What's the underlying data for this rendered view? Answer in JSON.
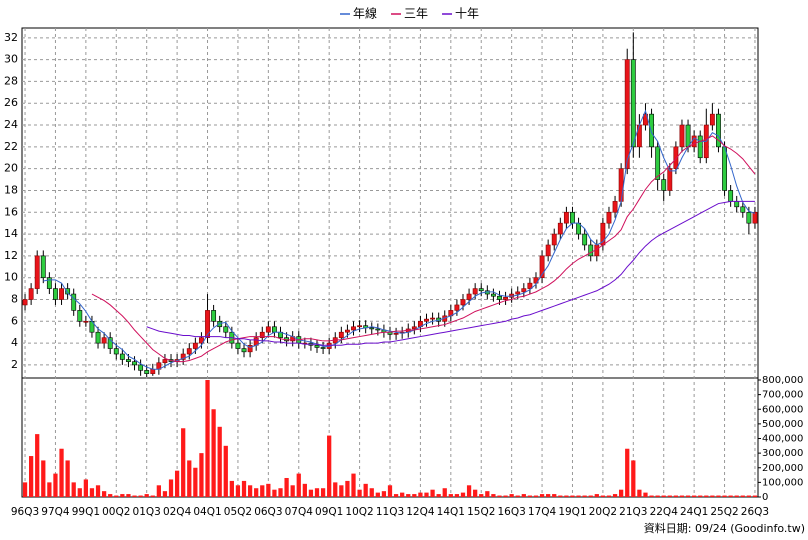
{
  "chart_data": {
    "type": "candlestick",
    "legend": "top",
    "grid": true,
    "categories": [
      "96Q3",
      null,
      null,
      null,
      null,
      "97Q4",
      null,
      null,
      null,
      null,
      "99Q1",
      null,
      null,
      null,
      null,
      "00Q2",
      null,
      null,
      null,
      null,
      "01Q3",
      null,
      null,
      null,
      null,
      "02Q4",
      null,
      null,
      null,
      null,
      "04Q1",
      null,
      null,
      null,
      null,
      "05Q2",
      null,
      null,
      null,
      null,
      "06Q3",
      null,
      null,
      null,
      null,
      "07Q4",
      null,
      null,
      null,
      null,
      "09Q1",
      null,
      null,
      null,
      null,
      "10Q2",
      null,
      null,
      null,
      null,
      "11Q3",
      null,
      null,
      null,
      null,
      "12Q4",
      null,
      null,
      null,
      null,
      "14Q1",
      null,
      null,
      null,
      null,
      "15Q2",
      null,
      null,
      null,
      null,
      "16Q3",
      null,
      null,
      null,
      null,
      "17Q4",
      null,
      null,
      null,
      null,
      "19Q1",
      null,
      null,
      null,
      null,
      "20Q2",
      null,
      null,
      null,
      null,
      "21Q3",
      null,
      null,
      null,
      null,
      "22Q4",
      null,
      null,
      null,
      null,
      "24Q1",
      null,
      null,
      null,
      null,
      "25Q2",
      null,
      null,
      null,
      null,
      "26Q3"
    ],
    "open": [
      7.5,
      8,
      9,
      12,
      10,
      9,
      8,
      9,
      8.5,
      7,
      6,
      6,
      5,
      4,
      4.5,
      3.5,
      3,
      2.5,
      2.3,
      2,
      1.5,
      1.2,
      1.6,
      2.2,
      2.5,
      2.3,
      2.5,
      3,
      3.5,
      4,
      4.5,
      7,
      6,
      5.5,
      5,
      4,
      3.5,
      3.2,
      3.8,
      4.5,
      5,
      5.5,
      5,
      4.5,
      4.2,
      4.6,
      4,
      4,
      3.8,
      3.6,
      3.5,
      4,
      4.5,
      5,
      5.2,
      5.5,
      5.6,
      5.4,
      5.3,
      5.2,
      5,
      4.8,
      4.9,
      5,
      5.3,
      5.5,
      6,
      6.2,
      6.3,
      6,
      6.5,
      7,
      7.5,
      8,
      8.5,
      9,
      8.8,
      8.5,
      8.3,
      8,
      8.2,
      8.5,
      8.7,
      9,
      9.5,
      10,
      12,
      13,
      14,
      15,
      16,
      15,
      14,
      13,
      12,
      13,
      15,
      16,
      17,
      20,
      30,
      22,
      24,
      25,
      22,
      19,
      18,
      20,
      22,
      24,
      22,
      23,
      21,
      24,
      25,
      22,
      18,
      17,
      16.5,
      16,
      15
    ],
    "high": [
      8.5,
      9.5,
      12.5,
      12.5,
      10.5,
      9.5,
      9.5,
      9.5,
      9,
      7.5,
      6.5,
      6.5,
      5.5,
      5,
      5,
      4,
      3.5,
      3,
      2.8,
      2.5,
      2,
      2.1,
      2.7,
      3,
      3,
      3,
      3.5,
      4,
      4.5,
      5,
      8.5,
      7.5,
      6.5,
      6,
      5.5,
      4.5,
      4,
      4.3,
      5,
      5.5,
      6,
      6,
      5.5,
      5,
      5.1,
      5.1,
      4.5,
      4.5,
      4.3,
      4.1,
      4.5,
      5,
      5.5,
      5.7,
      6,
      6.1,
      6.1,
      5.9,
      5.8,
      5.7,
      5.5,
      5.4,
      5.5,
      5.8,
      6,
      6.5,
      6.7,
      6.8,
      6.8,
      7,
      7.5,
      8,
      8.5,
      9,
      9.5,
      9.5,
      9.3,
      9,
      8.8,
      8.7,
      9,
      9.2,
      9.5,
      10,
      10.5,
      12.5,
      13.5,
      14.5,
      15.5,
      16.5,
      16.5,
      15.5,
      14.5,
      13.5,
      13.5,
      15.5,
      16.5,
      17.5,
      20.5,
      31,
      32.5,
      25,
      26,
      25.5,
      22.5,
      19.5,
      20.5,
      22.5,
      24.5,
      24.5,
      23.5,
      23.5,
      25.5,
      26,
      25.5,
      22.5,
      18.5,
      17.5,
      17,
      16.5,
      16.5
    ],
    "low": [
      7,
      7.5,
      8.5,
      9.5,
      8.5,
      7.5,
      7.5,
      8,
      6.5,
      5.5,
      5.5,
      4.5,
      3.5,
      3.5,
      3,
      2.5,
      2,
      1.8,
      1.5,
      1,
      0.9,
      1,
      1.1,
      1.7,
      1.8,
      1.8,
      2,
      2.5,
      3,
      3.5,
      4,
      5.5,
      5,
      4.5,
      3.5,
      3,
      2.7,
      2.7,
      3.3,
      4,
      4.5,
      4.5,
      4,
      3.7,
      3.7,
      3.5,
      3.5,
      3.3,
      3.1,
      3,
      3,
      3.5,
      4,
      4.5,
      4.7,
      5,
      4.9,
      4.8,
      4.7,
      4.5,
      4.3,
      4.3,
      4.4,
      4.5,
      4.8,
      5,
      5.5,
      5.7,
      5.5,
      5.5,
      6,
      6.5,
      7,
      7.5,
      8,
      8.3,
      8,
      7.8,
      7.5,
      7.5,
      7.7,
      8,
      8.2,
      8.5,
      9,
      9.5,
      11.5,
      12.5,
      13.5,
      14.5,
      14.5,
      13.5,
      12.5,
      11.5,
      11.5,
      12.5,
      14.5,
      15.5,
      16.5,
      19.5,
      21,
      21,
      23.5,
      21,
      18,
      17,
      17.5,
      19.5,
      21.5,
      21.5,
      21.5,
      20.5,
      20.5,
      23.5,
      21.5,
      17.5,
      16.5,
      16,
      15.5,
      14,
      14.5
    ],
    "close": [
      8,
      9,
      12,
      10,
      9,
      8,
      9,
      8.5,
      7,
      6,
      6,
      5,
      4,
      4.5,
      3.5,
      3,
      2.5,
      2.3,
      2,
      1.5,
      1.2,
      1.6,
      2.2,
      2.5,
      2.3,
      2.5,
      3,
      3.5,
      4,
      4.5,
      7,
      6,
      5.5,
      5,
      4,
      3.5,
      3.2,
      3.8,
      4.5,
      5,
      5.5,
      5,
      4.5,
      4.2,
      4.6,
      4,
      4,
      3.8,
      3.6,
      3.5,
      4,
      4.5,
      5,
      5.2,
      5.5,
      5.6,
      5.4,
      5.3,
      5.2,
      5,
      4.8,
      4.9,
      5,
      5.3,
      5.5,
      6,
      6.2,
      6.3,
      6,
      6.5,
      7,
      7.5,
      8,
      8.5,
      9,
      8.8,
      8.5,
      8.3,
      8,
      8.2,
      8.5,
      8.7,
      9,
      9.5,
      10,
      12,
      13,
      14,
      15,
      16,
      15,
      14,
      13,
      12,
      13,
      15,
      16,
      17,
      20,
      30,
      22,
      24,
      25,
      22,
      19,
      18,
      20,
      22,
      24,
      22,
      23,
      21,
      24,
      25,
      22,
      18,
      17,
      16.5,
      16,
      15,
      16
    ],
    "up_color": "#e8141a",
    "down_color": "#2ecc40",
    "ylim": [
      0.8,
      32.9
    ],
    "yticks": [
      2,
      4,
      6,
      8,
      10,
      12,
      14,
      16,
      18,
      20,
      22,
      24,
      26,
      28,
      30,
      32
    ],
    "series": [
      {
        "name": "年線",
        "color": "#3366cc",
        "values": [
          null,
          null,
          null,
          9.7,
          9.8,
          9.8,
          9.5,
          8.6,
          8.1,
          7.6,
          6.9,
          6,
          5.3,
          4.9,
          4.3,
          3.8,
          3.4,
          2.8,
          2.5,
          2.1,
          1.8,
          1.6,
          1.6,
          1.9,
          2.2,
          2.4,
          2.6,
          2.8,
          3.3,
          3.8,
          4.8,
          5.4,
          5.8,
          5.9,
          5.1,
          4.5,
          3.9,
          3.6,
          3.8,
          4.1,
          4.7,
          5,
          5,
          4.8,
          4.6,
          4.3,
          4.2,
          4.1,
          3.9,
          3.7,
          3.7,
          3.9,
          4.3,
          4.7,
          5.1,
          5.3,
          5.4,
          5.5,
          5.4,
          5.2,
          5.1,
          5,
          4.9,
          5,
          5.2,
          5.5,
          5.8,
          6,
          6.1,
          6.3,
          6.5,
          6.8,
          7.3,
          7.8,
          8.3,
          8.6,
          8.7,
          8.7,
          8.4,
          8.3,
          8.3,
          8.4,
          8.6,
          8.9,
          9.4,
          10.3,
          11.1,
          12.3,
          13.5,
          14.5,
          15,
          15,
          14.5,
          13.5,
          13,
          13.3,
          14,
          15.3,
          17,
          20.8,
          22.3,
          24,
          25.3,
          23.3,
          22.5,
          21,
          19.8,
          19.8,
          21,
          22,
          22.8,
          22.5,
          22.5,
          23.3,
          23,
          22,
          20.3,
          18.4,
          16.9,
          16.1,
          15.9
        ]
      },
      {
        "name": "三年",
        "color": "#d0105c",
        "values": [
          null,
          null,
          null,
          null,
          null,
          null,
          null,
          null,
          null,
          null,
          null,
          8.5,
          8.2,
          7.9,
          7.5,
          7,
          6.5,
          5.9,
          5.2,
          4.6,
          4,
          3.4,
          3,
          2.6,
          2.4,
          2.3,
          2.3,
          2.4,
          2.6,
          2.8,
          3.2,
          3.5,
          3.8,
          4.1,
          4.3,
          4.4,
          4.5,
          4.6,
          4.6,
          4.6,
          4.6,
          4.6,
          4.4,
          4.3,
          4.3,
          4.3,
          4.4,
          4.4,
          4.3,
          4.2,
          4.2,
          4.3,
          4.3,
          4.4,
          4.5,
          4.6,
          4.7,
          4.8,
          4.9,
          5,
          5,
          5.1,
          5.1,
          5.2,
          5.2,
          5.3,
          5.4,
          5.5,
          5.6,
          5.7,
          5.9,
          6.1,
          6.3,
          6.6,
          6.9,
          7.1,
          7.3,
          7.5,
          7.7,
          7.9,
          8,
          8.2,
          8.3,
          8.5,
          8.7,
          9,
          9.3,
          9.7,
          10.2,
          10.8,
          11.3,
          11.7,
          12,
          12.3,
          12.6,
          13,
          13.4,
          13.8,
          14.4,
          15.6,
          16.3,
          17.2,
          18.1,
          18.8,
          19.3,
          19.7,
          20.3,
          20.9,
          21.6,
          22,
          22.3,
          22.5,
          22.7,
          23,
          22.6,
          22.1,
          21.8,
          21.4,
          20.9,
          20.2,
          19.5
        ]
      },
      {
        "name": "十年",
        "color": "#6a0dcc",
        "values": [
          null,
          null,
          null,
          null,
          null,
          null,
          null,
          null,
          null,
          null,
          null,
          null,
          null,
          null,
          null,
          null,
          null,
          null,
          null,
          null,
          5.5,
          5.3,
          5.1,
          5,
          4.9,
          4.8,
          4.7,
          4.7,
          4.6,
          4.6,
          4.6,
          4.6,
          4.6,
          4.5,
          4.5,
          4.4,
          4.4,
          4.3,
          4.3,
          4.2,
          4.2,
          4.1,
          4.1,
          4,
          4,
          4,
          3.9,
          3.9,
          3.9,
          3.8,
          3.8,
          3.8,
          3.8,
          3.9,
          3.9,
          3.9,
          4,
          4,
          4,
          4.1,
          4.1,
          4.2,
          4.3,
          4.4,
          4.5,
          4.6,
          4.7,
          4.8,
          4.9,
          5,
          5.1,
          5.2,
          5.3,
          5.4,
          5.5,
          5.6,
          5.7,
          5.8,
          5.9,
          6,
          6.2,
          6.3,
          6.5,
          6.6,
          6.8,
          7,
          7.2,
          7.4,
          7.6,
          7.8,
          8,
          8.2,
          8.4,
          8.6,
          8.8,
          9.1,
          9.4,
          9.8,
          10.3,
          11,
          11.6,
          12.3,
          12.9,
          13.4,
          13.8,
          14.1,
          14.4,
          14.7,
          15,
          15.3,
          15.6,
          15.9,
          16.2,
          16.5,
          16.8,
          16.9,
          17,
          17,
          17,
          17,
          17
        ]
      }
    ],
    "volume": {
      "color": "#ff1a1a",
      "ylim": [
        0,
        800000
      ],
      "yticks": [
        0,
        {
          "value": 100000,
          "label": "100,000"
        },
        {
          "value": 200000,
          "label": "200,000"
        },
        {
          "value": 300000,
          "label": "300,000"
        },
        {
          "value": 400000,
          "label": "400,000"
        },
        {
          "value": 500000,
          "label": "500,000"
        },
        {
          "value": 600000,
          "label": "600,000"
        },
        {
          "value": 700000,
          "label": "700,000"
        },
        {
          "value": 800000,
          "label": "800,000"
        }
      ],
      "values": [
        100000,
        280000,
        430000,
        250000,
        100000,
        160000,
        330000,
        250000,
        100000,
        60000,
        120000,
        60000,
        80000,
        40000,
        20000,
        10000,
        20000,
        20000,
        10000,
        10000,
        20000,
        10000,
        80000,
        40000,
        120000,
        180000,
        470000,
        250000,
        200000,
        300000,
        800000,
        600000,
        480000,
        350000,
        110000,
        80000,
        110000,
        80000,
        60000,
        80000,
        90000,
        50000,
        60000,
        130000,
        80000,
        160000,
        90000,
        50000,
        60000,
        60000,
        420000,
        100000,
        80000,
        110000,
        160000,
        50000,
        90000,
        60000,
        30000,
        40000,
        80000,
        20000,
        30000,
        20000,
        20000,
        30000,
        30000,
        50000,
        20000,
        60000,
        20000,
        20000,
        30000,
        80000,
        50000,
        20000,
        40000,
        20000,
        10000,
        10000,
        20000,
        10000,
        20000,
        10000,
        10000,
        20000,
        20000,
        20000,
        10000,
        10000,
        10000,
        10000,
        10000,
        10000,
        20000,
        10000,
        10000,
        20000,
        50000,
        330000,
        250000,
        50000,
        30000,
        10000,
        10000,
        10000,
        10000,
        10000,
        10000,
        10000,
        10000,
        10000,
        10000,
        10000,
        10000,
        10000,
        10000,
        10000,
        10000,
        10000,
        10000
      ]
    },
    "footer": "資料日期: 09/24 (Goodinfo.tw)"
  }
}
